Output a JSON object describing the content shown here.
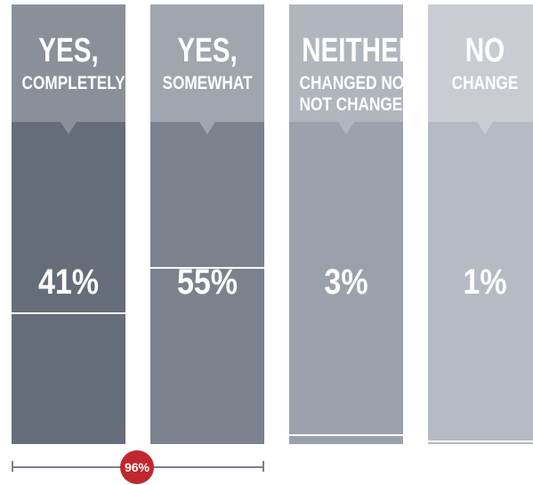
{
  "chart_data": {
    "type": "bar",
    "categories": [
      {
        "title": "YES,",
        "subtitle": [
          "COMPLETELY"
        ]
      },
      {
        "title": "YES,",
        "subtitle": [
          "SOMEWHAT"
        ]
      },
      {
        "title": "NEITHER",
        "subtitle": [
          "CHANGED NOR",
          "NOT CHANGED"
        ]
      },
      {
        "title": "NO",
        "subtitle": [
          "CHANGE"
        ]
      }
    ],
    "values": [
      41,
      55,
      3,
      1
    ],
    "value_labels": [
      "41%",
      "55%",
      "3%",
      "1%"
    ],
    "unit": "%",
    "ylim": [
      0,
      100
    ],
    "grid": false,
    "legend": "none",
    "total": {
      "value": 96,
      "label": "96%",
      "spans_categories": [
        0,
        1
      ]
    },
    "colors": {
      "header": [
        "#8a909a",
        "#a0a5ae",
        "#b1b5bd",
        "#c9ccd2"
      ],
      "body": [
        "#656d7a",
        "#7b828e",
        "#9ba1ac",
        "#b6bac2"
      ],
      "total_badge": "#c1272d",
      "bracket": "#7a818c",
      "text": "#ffffff"
    }
  }
}
